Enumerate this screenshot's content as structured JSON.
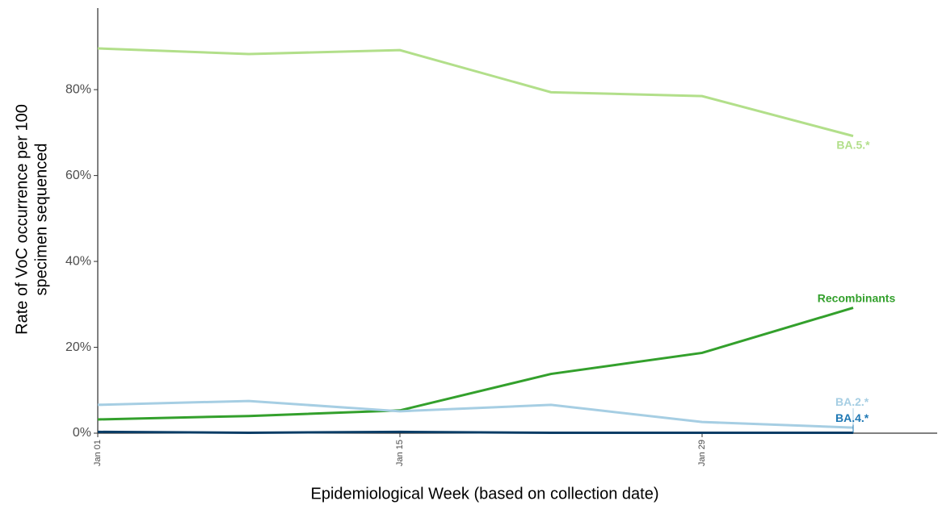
{
  "chart_data": {
    "type": "line",
    "x_label": "Epidemiological Week (based on collection date)",
    "y_label": [
      "Rate of VoC occurrence per 100",
      "specimen sequenced"
    ],
    "categories": [
      "Jan 01",
      null,
      "Jan 15",
      null,
      "Jan 29",
      null
    ],
    "ylim": [
      0,
      99
    ],
    "yticks": [
      {
        "value": 0,
        "label": "0%"
      },
      {
        "value": 20,
        "label": "20%"
      },
      {
        "value": 40,
        "label": "40%"
      },
      {
        "value": 60,
        "label": "60%"
      },
      {
        "value": 80,
        "label": "80%"
      }
    ],
    "grid": false,
    "series": [
      {
        "name": "BA.5.*",
        "color": "#b2df8a",
        "label_color": "#b2df8a",
        "values": [
          89.6,
          88.3,
          89.2,
          79.4,
          78.5,
          69.2
        ]
      },
      {
        "name": "Recombinants",
        "color": "#33a02c",
        "label_color": "#33a02c",
        "values": [
          3.2,
          4.0,
          5.3,
          13.8,
          18.7,
          29.2
        ]
      },
      {
        "name": "BA.2.*",
        "color": "#a6cee3",
        "label_color": "#a6cee3",
        "values": [
          6.6,
          7.5,
          5.1,
          6.6,
          2.6,
          1.3
        ]
      },
      {
        "name": "BA.4.*",
        "color": "#0b3d66",
        "label_color": "#1f78b4",
        "values": [
          0.3,
          0.1,
          0.3,
          0.1,
          0.1,
          0.1
        ]
      }
    ]
  }
}
